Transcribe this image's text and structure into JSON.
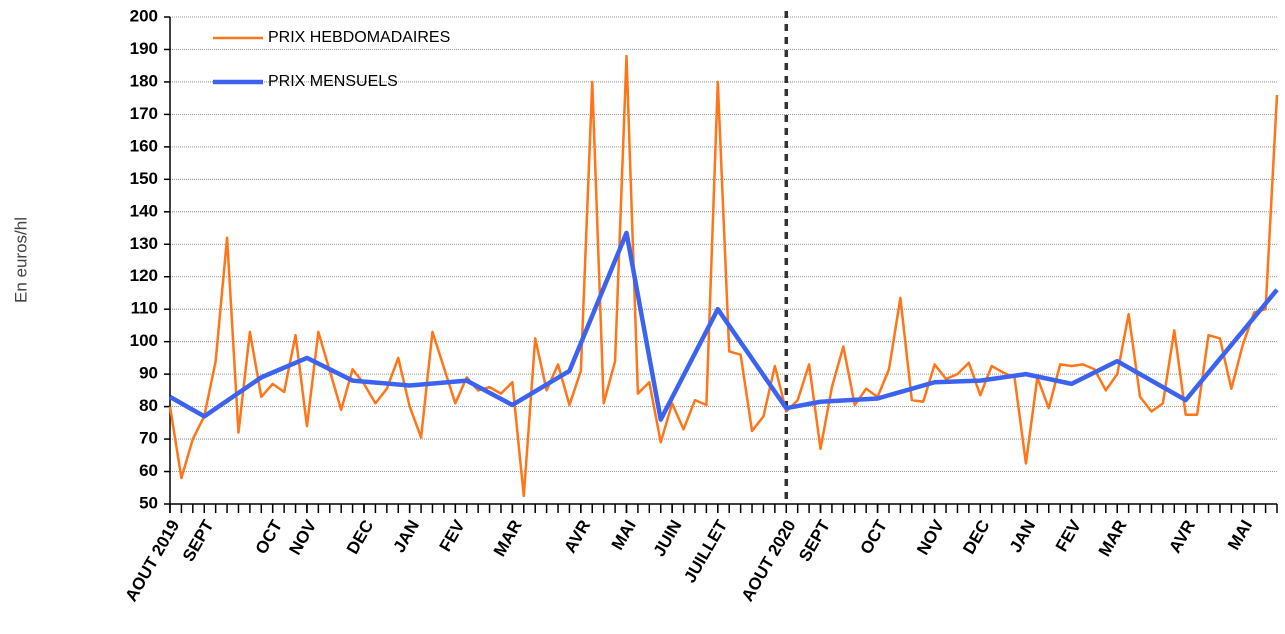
{
  "chart_data": {
    "type": "line",
    "ylabel": "En euros/hl",
    "ylim": [
      50,
      200
    ],
    "yticks": [
      50,
      60,
      70,
      80,
      90,
      100,
      110,
      120,
      130,
      140,
      150,
      160,
      170,
      180,
      190,
      200
    ],
    "xlim": [
      0,
      97
    ],
    "xticks": [
      {
        "value": 0,
        "label": "AOUT 2019"
      },
      {
        "value": 3,
        "label": "SEPT"
      },
      {
        "value": 9,
        "label": "OCT"
      },
      {
        "value": 12,
        "label": "NOV"
      },
      {
        "value": 17,
        "label": "DEC"
      },
      {
        "value": 21,
        "label": "JAN"
      },
      {
        "value": 25,
        "label": "FEV"
      },
      {
        "value": 30,
        "label": "MAR"
      },
      {
        "value": 36,
        "label": "AVR"
      },
      {
        "value": 40,
        "label": "MAI"
      },
      {
        "value": 44,
        "label": "JUIN"
      },
      {
        "value": 48,
        "label": "JUILLET"
      },
      {
        "value": 54,
        "label": "AOUT 2020"
      },
      {
        "value": 57,
        "label": "SEPT"
      },
      {
        "value": 62,
        "label": "OCT"
      },
      {
        "value": 67,
        "label": "NOV"
      },
      {
        "value": 71,
        "label": "DEC"
      },
      {
        "value": 75,
        "label": "JAN"
      },
      {
        "value": 79,
        "label": "FEV"
      },
      {
        "value": 83,
        "label": "MAR"
      },
      {
        "value": 89,
        "label": "AVR"
      },
      {
        "value": 94,
        "label": "MAI"
      }
    ],
    "vline": 54,
    "grid": true,
    "series": [
      {
        "name": "PRIX HEBDOMADAIRES",
        "color": "#ff7518",
        "width": 2.5,
        "x": [
          0,
          1,
          2,
          3,
          4,
          5,
          6,
          7,
          8,
          9,
          10,
          11,
          12,
          13,
          14,
          15,
          16,
          17,
          18,
          19,
          20,
          21,
          22,
          23,
          24,
          25,
          26,
          27,
          28,
          29,
          30,
          31,
          32,
          33,
          34,
          35,
          36,
          37,
          38,
          39,
          40,
          41,
          42,
          43,
          44,
          45,
          46,
          47,
          48,
          49,
          50,
          51,
          52,
          53,
          54,
          55,
          56,
          57,
          58,
          59,
          60,
          61,
          62,
          63,
          64,
          65,
          66,
          67,
          68,
          69,
          70,
          71,
          72,
          73,
          74,
          75,
          76,
          77,
          78,
          79,
          80,
          81,
          82,
          83,
          84,
          85,
          86,
          87,
          88,
          89,
          90,
          91,
          92,
          93,
          94,
          95,
          96,
          97
        ],
        "values": [
          80,
          58,
          70,
          77,
          94,
          132,
          72,
          103,
          83,
          87,
          84.5,
          102,
          74,
          103,
          91,
          79,
          91.5,
          87,
          81,
          85.5,
          95,
          80,
          70.5,
          103,
          92,
          81,
          89,
          85,
          86,
          84,
          87.5,
          52.5,
          101,
          85,
          93,
          80.5,
          91,
          180,
          81,
          94,
          188,
          84,
          87.5,
          69,
          81,
          73,
          82,
          80.5,
          180,
          97,
          96,
          72.5,
          77,
          92.5,
          78.5,
          82,
          93,
          67,
          86,
          98.5,
          80.5,
          85.5,
          83,
          91.5,
          113.5,
          82,
          81.5,
          93,
          88.5,
          90,
          93.5,
          83.5,
          92.5,
          90.5,
          89,
          62.5,
          89,
          79.5,
          93,
          92.5,
          93,
          91.5,
          85,
          90,
          108.5,
          83,
          78.5,
          81,
          103.5,
          77.5,
          77.5,
          102,
          101,
          85.5,
          99,
          109,
          110,
          176
        ]
      },
      {
        "name": "PRIX MENSUELS",
        "color": "#3b63f0",
        "width": 4.5,
        "x": [
          0,
          3,
          8,
          12,
          16,
          21,
          26,
          30,
          35,
          40,
          43,
          48,
          54,
          57,
          62,
          67,
          71,
          75,
          79,
          83,
          89,
          97
        ],
        "values": [
          83,
          77,
          89,
          95,
          88,
          86.5,
          88,
          80.5,
          91,
          133.5,
          76,
          110,
          79.5,
          81.5,
          82.5,
          87.5,
          88,
          90,
          87,
          94,
          82,
          116
        ]
      }
    ]
  }
}
